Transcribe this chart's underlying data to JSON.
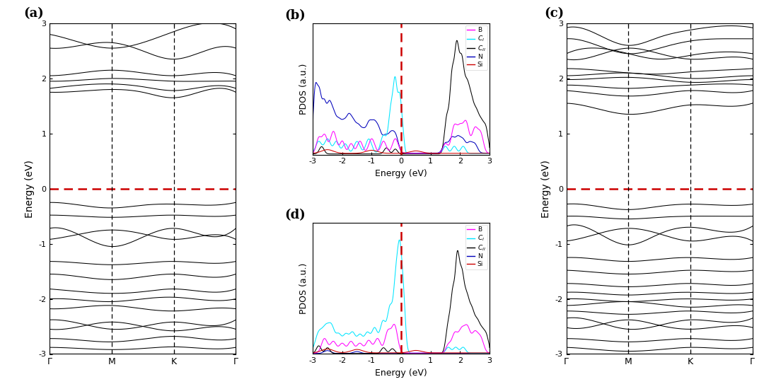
{
  "title": "",
  "panel_labels": [
    "(a)",
    "(b)",
    "(c)",
    "(d)"
  ],
  "band_xlabels": [
    "Γ",
    "M",
    "K",
    "Γ"
  ],
  "energy_ylim": [
    -3,
    3
  ],
  "energy_yticks": [
    -3,
    -2,
    -1,
    0,
    1,
    2,
    3
  ],
  "energy_ylabel": "Energy (eV)",
  "pdos_xlabel": "Energy (eV)",
  "pdos_ylabel": "PDOS (a.u.)",
  "pdos_xlim": [
    -3,
    3
  ],
  "pdos_xticks": [
    -3,
    -2,
    -1,
    0,
    1,
    2,
    3
  ],
  "colors_B": "#ff00ff",
  "colors_CI": "#00e5ff",
  "colors_CII": "#000000",
  "colors_N": "#0000bb",
  "colors_Si": "#cc0000",
  "fermi_color": "#cc0000",
  "band_color": "#000000",
  "background_color": "#ffffff",
  "label_fontsize": 13,
  "axis_fontsize": 9,
  "tick_fontsize": 8
}
